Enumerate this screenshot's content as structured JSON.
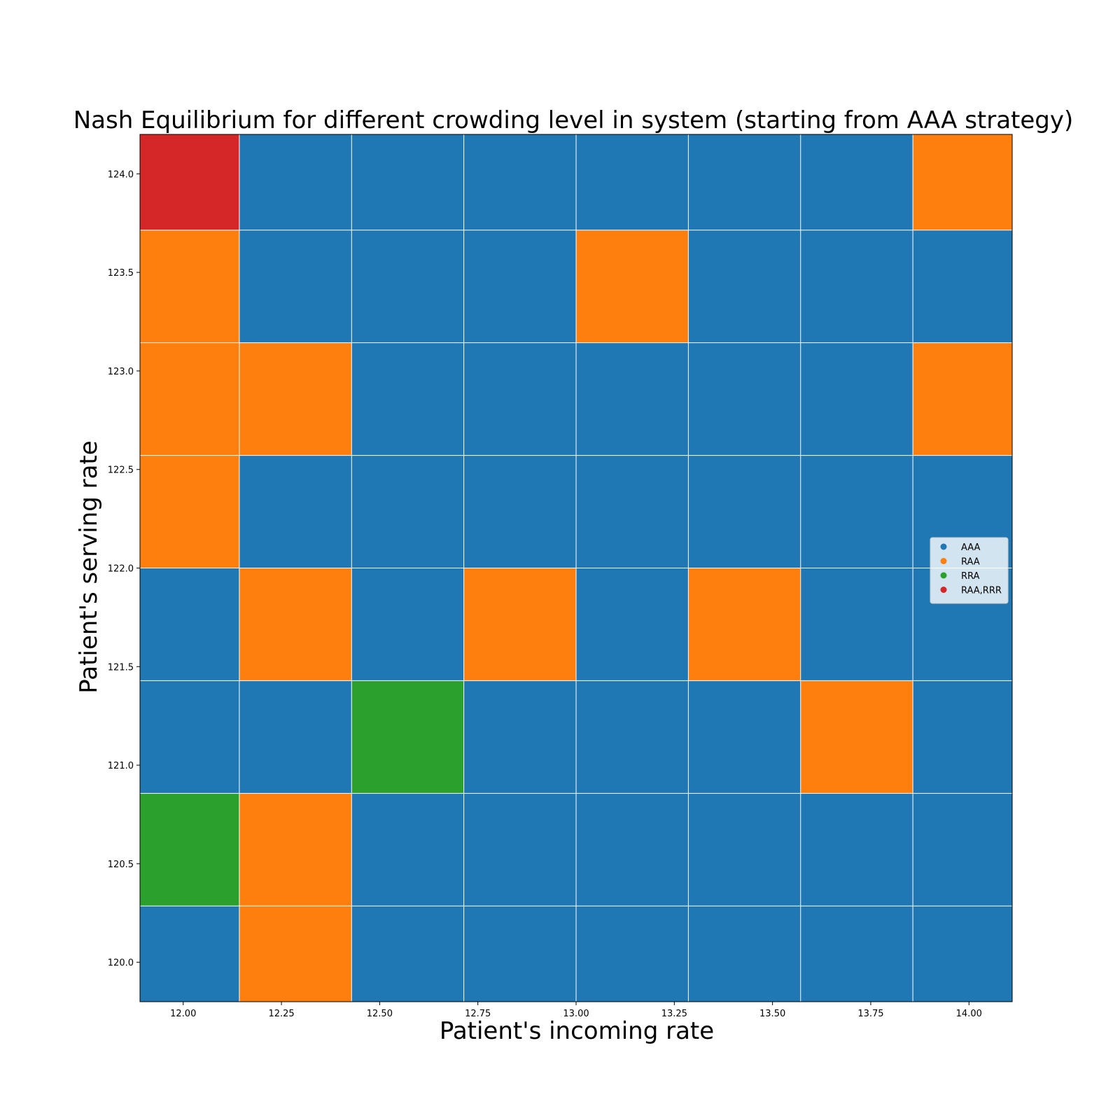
{
  "chart_data": {
    "type": "scatter",
    "title": "Nash Equilibrium for different crowding level in system (starting from AAA strategy)",
    "xlabel": "Patient's incoming rate",
    "ylabel": "Patient's serving rate",
    "xlim": [
      11.89,
      14.11
    ],
    "ylim": [
      119.8,
      124.2
    ],
    "x_ticks": [
      12.0,
      12.25,
      12.5,
      12.75,
      13.0,
      13.25,
      13.5,
      13.75,
      14.0
    ],
    "x_tick_labels": [
      "12.00",
      "12.25",
      "12.50",
      "12.75",
      "13.00",
      "13.25",
      "13.50",
      "13.75",
      "14.00"
    ],
    "y_ticks": [
      120.0,
      120.5,
      121.0,
      121.5,
      122.0,
      122.5,
      123.0,
      123.5,
      124.0
    ],
    "y_tick_labels": [
      "120.0",
      "120.5",
      "121.0",
      "121.5",
      "122.0",
      "122.5",
      "123.0",
      "123.5",
      "124.0"
    ],
    "x": [
      12.0,
      12.2857,
      12.5714,
      12.8571,
      13.1429,
      13.4286,
      13.7143,
      14.0
    ],
    "y": [
      120.0,
      120.5714,
      121.1429,
      121.7143,
      122.2857,
      122.8571,
      123.4286,
      124.0
    ],
    "categories": [
      "AAA",
      "RAA",
      "RRA",
      "RAA,RRR"
    ],
    "colors": {
      "AAA": "#1f77b4",
      "RAA": "#ff7f0e",
      "RRA": "#2ca02c",
      "RAA,RRR": "#d62728"
    },
    "grid": [
      [
        "AAA",
        "RAA",
        "AAA",
        "AAA",
        "AAA",
        "AAA",
        "AAA",
        "AAA"
      ],
      [
        "RRA",
        "RAA",
        "AAA",
        "AAA",
        "AAA",
        "AAA",
        "AAA",
        "AAA"
      ],
      [
        "AAA",
        "AAA",
        "RRA",
        "AAA",
        "AAA",
        "AAA",
        "RAA",
        "AAA"
      ],
      [
        "AAA",
        "RAA",
        "AAA",
        "RAA",
        "AAA",
        "RAA",
        "AAA",
        "AAA"
      ],
      [
        "RAA",
        "AAA",
        "AAA",
        "AAA",
        "AAA",
        "AAA",
        "AAA",
        "AAA"
      ],
      [
        "RAA",
        "RAA",
        "AAA",
        "AAA",
        "AAA",
        "AAA",
        "AAA",
        "RAA"
      ],
      [
        "RAA",
        "AAA",
        "AAA",
        "AAA",
        "RAA",
        "AAA",
        "AAA",
        "AAA"
      ],
      [
        "RAA,RRR",
        "AAA",
        "AAA",
        "AAA",
        "AAA",
        "AAA",
        "AAA",
        "RAA"
      ]
    ],
    "legend": {
      "position": "center-right",
      "entries": [
        "AAA",
        "RAA",
        "RRA",
        "RAA,RRR"
      ]
    }
  }
}
